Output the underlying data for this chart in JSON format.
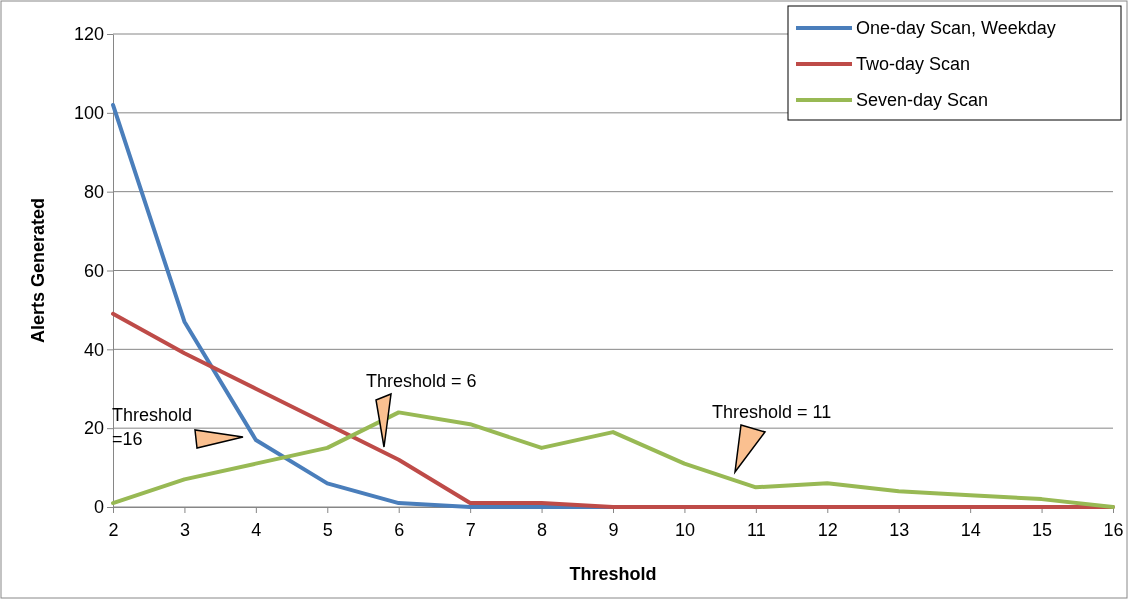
{
  "chart_data": {
    "type": "line",
    "xlabel": "Threshold",
    "ylabel": "Alerts Generated",
    "x": [
      2,
      3,
      4,
      5,
      6,
      7,
      8,
      9,
      10,
      11,
      12,
      13,
      14,
      15,
      16
    ],
    "series": [
      {
        "name": "One-day Scan, Weekday",
        "color": "#4a7ebb",
        "values": [
          102,
          47,
          17,
          6,
          1,
          0,
          0,
          0,
          0,
          null,
          null,
          null,
          null,
          null,
          null
        ]
      },
      {
        "name": "Two-day Scan",
        "color": "#be4b48",
        "values": [
          49,
          39,
          30,
          21,
          12,
          1,
          1,
          0,
          0,
          0,
          0,
          0,
          0,
          0,
          0
        ]
      },
      {
        "name": "Seven-day Scan",
        "color": "#98b954",
        "values": [
          1,
          7,
          11,
          15,
          24,
          21,
          15,
          19,
          11,
          5,
          6,
          4,
          3,
          2,
          0
        ]
      }
    ],
    "xlim": [
      2,
      16
    ],
    "xticks": [
      2,
      3,
      4,
      5,
      6,
      7,
      8,
      9,
      10,
      11,
      12,
      13,
      14,
      15,
      16
    ],
    "ylim": [
      0,
      120
    ],
    "yticks": [
      0,
      20,
      40,
      60,
      80,
      100,
      120
    ],
    "grid": "y",
    "legend": "top right",
    "marker": "none",
    "line_style": "solid",
    "annotations": [
      "Threshold\n=16",
      "Threshold = 6",
      "Threshold = 11"
    ]
  }
}
